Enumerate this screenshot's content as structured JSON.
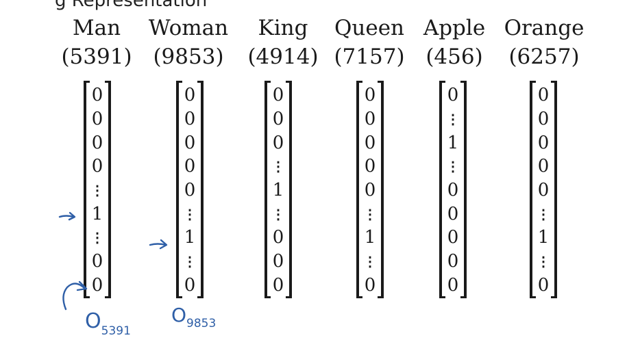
{
  "header_fragment": "g Representation",
  "words": [
    {
      "word": "Man",
      "index": "(5391)",
      "vector": [
        "0",
        "0",
        "0",
        "0",
        "⋮",
        "1",
        "⋮",
        "0",
        "0"
      ]
    },
    {
      "word": "Woman",
      "index": "(9853)",
      "vector": [
        "0",
        "0",
        "0",
        "0",
        "0",
        "⋮",
        "1",
        "⋮",
        "0"
      ]
    },
    {
      "word": "King",
      "index": "(4914)",
      "vector": [
        "0",
        "0",
        "0",
        "⋮",
        "1",
        "⋮",
        "0",
        "0",
        "0"
      ]
    },
    {
      "word": "Queen",
      "index": "(7157)",
      "vector": [
        "0",
        "0",
        "0",
        "0",
        "0",
        "⋮",
        "1",
        "⋮",
        "0"
      ]
    },
    {
      "word": "Apple",
      "index": "(456)",
      "vector": [
        "0",
        "⋮",
        "1",
        "⋮",
        "0",
        "0",
        "0",
        "0",
        "0"
      ]
    },
    {
      "word": "Orange",
      "index": "(6257)",
      "vector": [
        "0",
        "0",
        "0",
        "0",
        "0",
        "⋮",
        "1",
        "⋮",
        "0"
      ]
    }
  ],
  "annotations": {
    "o_man": "O",
    "o_man_sub": "5391",
    "o_woman": "O",
    "o_woman_sub": "9853"
  },
  "colors": {
    "ink": "#2f5fa7",
    "text": "#1a1a1a"
  }
}
